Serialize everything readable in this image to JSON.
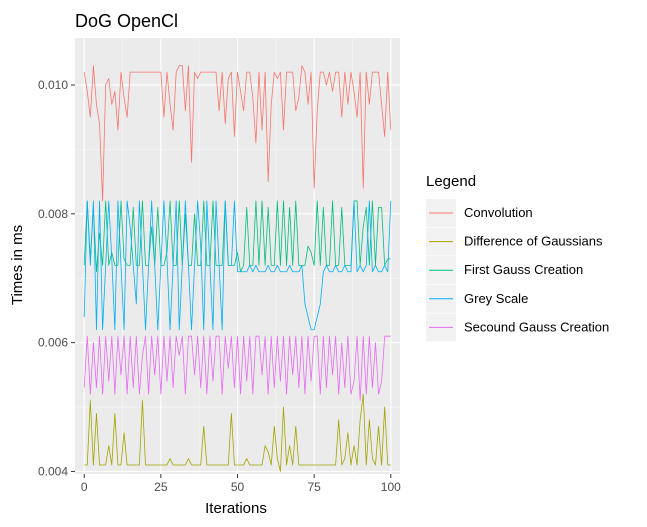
{
  "chart_data": {
    "type": "line",
    "title": "DoG OpenCl",
    "xlabel": "Iterations",
    "ylabel": "Times in ms",
    "xlim": [
      -3,
      103
    ],
    "ylim": [
      0.00396,
      0.01073
    ],
    "xticks": [
      0,
      25,
      50,
      75,
      100
    ],
    "xtick_labels": [
      "0",
      "25",
      "50",
      "75",
      "100"
    ],
    "yticks": [
      0.004,
      0.006,
      0.008,
      0.01
    ],
    "ytick_labels": [
      "0.004",
      "0.006",
      "0.008",
      "0.010"
    ],
    "grid": true,
    "legend": {
      "title": "Legend",
      "position": "right"
    },
    "series": [
      {
        "name": "Convolution",
        "color": "#F8766D",
        "values": [
          0.0102,
          0.0099,
          0.0095,
          0.0103,
          0.0097,
          0.0094,
          0.0082,
          0.01,
          0.0101,
          0.0097,
          0.0099,
          0.0093,
          0.0102,
          0.0098,
          0.0095,
          0.0102,
          0.0102,
          0.0102,
          0.0102,
          0.0102,
          0.0102,
          0.0102,
          0.0102,
          0.0102,
          0.0102,
          0.0102,
          0.0095,
          0.0102,
          0.0097,
          0.0093,
          0.0102,
          0.0103,
          0.0103,
          0.0096,
          0.0103,
          0.0088,
          0.0102,
          0.0101,
          0.0102,
          0.0102,
          0.0102,
          0.0102,
          0.0102,
          0.0102,
          0.0096,
          0.0102,
          0.0094,
          0.0101,
          0.0102,
          0.0092,
          0.0102,
          0.0099,
          0.0096,
          0.0102,
          0.0102,
          0.0098,
          0.0091,
          0.0102,
          0.0093,
          0.0102,
          0.0085,
          0.0097,
          0.0102,
          0.0101,
          0.0102,
          0.0093,
          0.0102,
          0.0102,
          0.0102,
          0.0096,
          0.0098,
          0.0103,
          0.0102,
          0.0097,
          0.0102,
          0.0084,
          0.0096,
          0.0102,
          0.0102,
          0.01,
          0.0102,
          0.0099,
          0.0102,
          0.0102,
          0.0095,
          0.0102,
          0.0097,
          0.0102,
          0.0099,
          0.0095,
          0.0102,
          0.0084,
          0.0102,
          0.0097,
          0.0102,
          0.0102,
          0.0102,
          0.0097,
          0.0092,
          0.0102,
          0.0093
        ]
      },
      {
        "name": "Difference of Gaussians",
        "color": "#A3A500",
        "values": [
          0.0041,
          0.0041,
          0.0051,
          0.0041,
          0.0049,
          0.0041,
          0.0041,
          0.0041,
          0.0044,
          0.0041,
          0.0049,
          0.0041,
          0.0041,
          0.0046,
          0.0041,
          0.0041,
          0.0041,
          0.0041,
          0.0041,
          0.0051,
          0.0041,
          0.0041,
          0.0041,
          0.0041,
          0.0041,
          0.0041,
          0.0041,
          0.0041,
          0.0042,
          0.0041,
          0.0041,
          0.0041,
          0.0041,
          0.0041,
          0.0042,
          0.0041,
          0.0041,
          0.0041,
          0.0041,
          0.0047,
          0.0041,
          0.0041,
          0.0041,
          0.0041,
          0.0041,
          0.0041,
          0.0041,
          0.0041,
          0.0049,
          0.0041,
          0.0041,
          0.0041,
          0.0041,
          0.0042,
          0.0041,
          0.0041,
          0.0041,
          0.0041,
          0.0041,
          0.0044,
          0.0043,
          0.0041,
          0.0047,
          0.0042,
          0.004,
          0.005,
          0.0041,
          0.0044,
          0.0041,
          0.0047,
          0.0041,
          0.0041,
          0.0041,
          0.0041,
          0.0041,
          0.0041,
          0.0041,
          0.0041,
          0.0041,
          0.0041,
          0.0041,
          0.0041,
          0.0041,
          0.0048,
          0.0041,
          0.0042,
          0.0046,
          0.0041,
          0.0044,
          0.0041,
          0.0048,
          0.0052,
          0.0041,
          0.0048,
          0.0042,
          0.0041,
          0.0047,
          0.0041,
          0.005,
          0.0041,
          0.0041
        ]
      },
      {
        "name": "First Gauss Creation",
        "color": "#00BF7D",
        "values": [
          0.0072,
          0.0082,
          0.0073,
          0.0081,
          0.0071,
          0.0077,
          0.0072,
          0.0082,
          0.0072,
          0.0074,
          0.0072,
          0.0072,
          0.0082,
          0.0073,
          0.0072,
          0.0072,
          0.0081,
          0.0072,
          0.0072,
          0.0082,
          0.0072,
          0.0072,
          0.0078,
          0.0072,
          0.0081,
          0.0072,
          0.0072,
          0.0074,
          0.0082,
          0.0072,
          0.0072,
          0.0082,
          0.0072,
          0.008,
          0.0072,
          0.0072,
          0.008,
          0.0072,
          0.0072,
          0.0082,
          0.0072,
          0.0072,
          0.0082,
          0.0072,
          0.0072,
          0.0072,
          0.0082,
          0.0072,
          0.0072,
          0.0072,
          0.0074,
          0.0071,
          0.0072,
          0.0081,
          0.0072,
          0.0072,
          0.0082,
          0.0072,
          0.0082,
          0.0072,
          0.0081,
          0.0072,
          0.0072,
          0.0082,
          0.0072,
          0.0082,
          0.0072,
          0.0081,
          0.0072,
          0.0082,
          0.0072,
          0.0072,
          0.0072,
          0.0075,
          0.0074,
          0.0072,
          0.0082,
          0.0072,
          0.0081,
          0.0072,
          0.0072,
          0.0082,
          0.0072,
          0.0072,
          0.0081,
          0.0072,
          0.0072,
          0.0072,
          0.0082,
          0.0082,
          0.0072,
          0.0078,
          0.0081,
          0.0072,
          0.0082,
          0.0072,
          0.0081,
          0.0081,
          0.0072,
          0.0073,
          0.0073
        ]
      },
      {
        "name": "Grey Scale",
        "color": "#00B0F6",
        "values": [
          0.0064,
          0.0082,
          0.0072,
          0.0082,
          0.0062,
          0.0082,
          0.0062,
          0.0072,
          0.0082,
          0.0073,
          0.0062,
          0.0082,
          0.0072,
          0.0062,
          0.0082,
          0.0078,
          0.0072,
          0.0066,
          0.0082,
          0.0072,
          0.0062,
          0.0072,
          0.0082,
          0.0072,
          0.0062,
          0.0072,
          0.0082,
          0.0073,
          0.0062,
          0.0072,
          0.0082,
          0.0062,
          0.0072,
          0.0082,
          0.0072,
          0.0062,
          0.0072,
          0.0082,
          0.0075,
          0.0062,
          0.0082,
          0.0072,
          0.0062,
          0.0082,
          0.0072,
          0.0062,
          0.0082,
          0.0072,
          0.0072,
          0.0082,
          0.0071,
          0.0071,
          0.0071,
          0.0071,
          0.0072,
          0.0071,
          0.0072,
          0.0071,
          0.0071,
          0.0071,
          0.0072,
          0.0071,
          0.0071,
          0.0072,
          0.0071,
          0.0071,
          0.0071,
          0.0072,
          0.0071,
          0.0071,
          0.0071,
          0.0072,
          0.0066,
          0.0064,
          0.0062,
          0.0062,
          0.0064,
          0.0066,
          0.0071,
          0.0072,
          0.0071,
          0.0071,
          0.0072,
          0.0071,
          0.0071,
          0.0072,
          0.0071,
          0.0071,
          0.0082,
          0.0071,
          0.0072,
          0.0071,
          0.0072,
          0.0082,
          0.0071,
          0.0072,
          0.0071,
          0.0071,
          0.0072,
          0.0071,
          0.0082
        ]
      },
      {
        "name": "Secound Gauss Creation",
        "color": "#E76BF3",
        "values": [
          0.0053,
          0.0061,
          0.0052,
          0.006,
          0.0053,
          0.0061,
          0.0052,
          0.0061,
          0.0054,
          0.0061,
          0.0052,
          0.0061,
          0.0055,
          0.0061,
          0.0052,
          0.0061,
          0.0053,
          0.0061,
          0.0052,
          0.0058,
          0.0061,
          0.0052,
          0.0061,
          0.0055,
          0.0061,
          0.0052,
          0.0061,
          0.0054,
          0.0061,
          0.0053,
          0.0061,
          0.0058,
          0.0061,
          0.0052,
          0.0061,
          0.0061,
          0.0055,
          0.0061,
          0.0053,
          0.0061,
          0.0052,
          0.0061,
          0.0054,
          0.0061,
          0.0061,
          0.0052,
          0.0061,
          0.0056,
          0.0061,
          0.0053,
          0.0061,
          0.0052,
          0.0061,
          0.0054,
          0.0061,
          0.0052,
          0.0061,
          0.0061,
          0.0055,
          0.0061,
          0.0052,
          0.0061,
          0.0053,
          0.0061,
          0.0054,
          0.0061,
          0.0052,
          0.0061,
          0.0055,
          0.0061,
          0.0053,
          0.0061,
          0.0052,
          0.0061,
          0.0054,
          0.0061,
          0.0061,
          0.0052,
          0.0061,
          0.0053,
          0.0061,
          0.0055,
          0.0061,
          0.0052,
          0.006,
          0.0053,
          0.0061,
          0.0052,
          0.0054,
          0.0061,
          0.0051,
          0.0061,
          0.0052,
          0.0061,
          0.0053,
          0.006,
          0.0052,
          0.0054,
          0.0061,
          0.0061,
          0.0061
        ]
      }
    ]
  }
}
